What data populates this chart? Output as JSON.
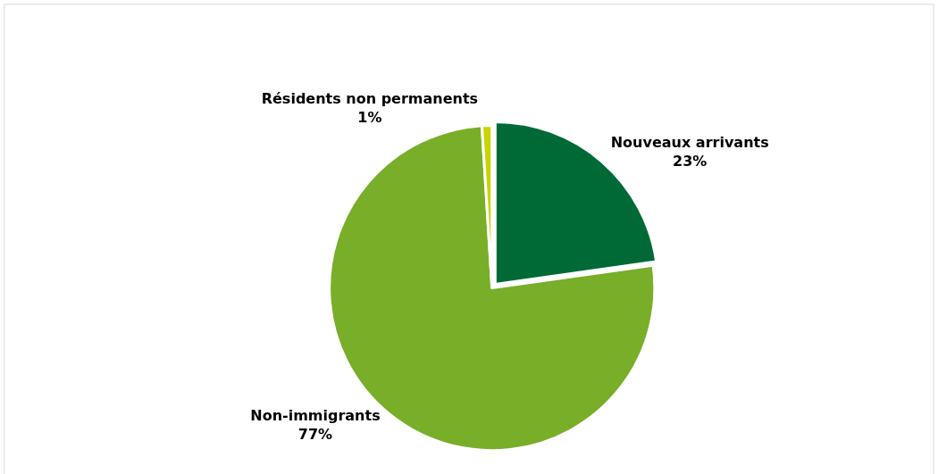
{
  "chart_data": {
    "type": "pie",
    "categories": [
      "Nouveaux arrivants",
      "Non-immigrants",
      "Résidents non permanents"
    ],
    "values": [
      23,
      77,
      1
    ],
    "value_labels": [
      "23%",
      "77%",
      "1%"
    ],
    "colors": [
      "#006a37",
      "#78ae28",
      "#c8d400"
    ],
    "legend": false
  }
}
